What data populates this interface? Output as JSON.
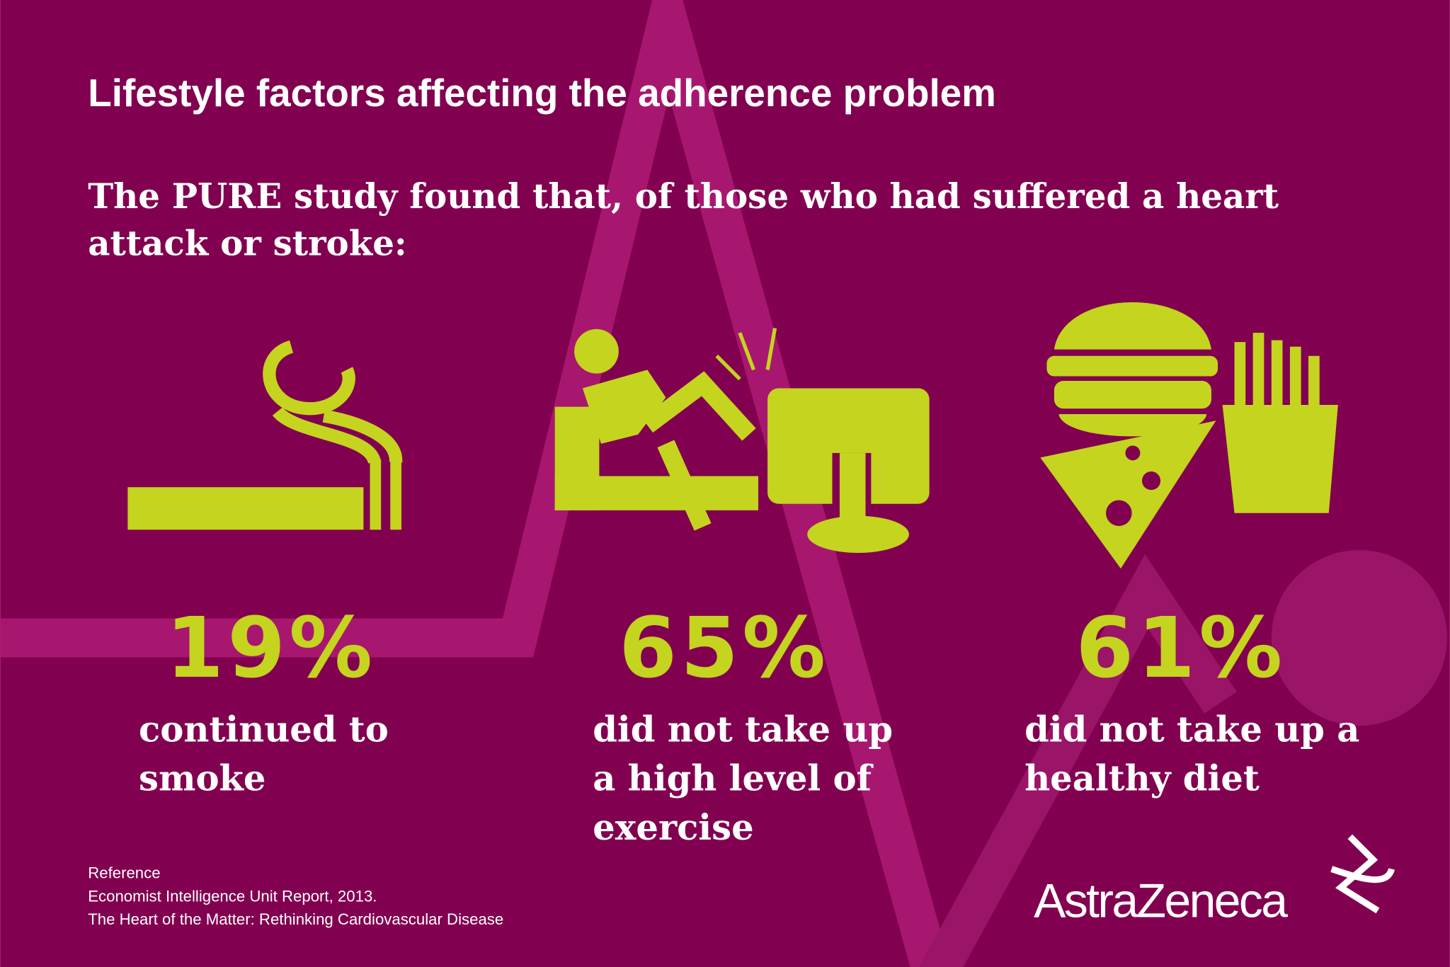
{
  "header": {
    "title": "Lifestyle factors affecting the adherence problem",
    "subtitle_lines": [
      "The PURE study found that, of those who had suffered a heart",
      "attack or stroke:"
    ]
  },
  "stats": [
    {
      "value": "19%",
      "lines": [
        "continued to",
        "smoke"
      ]
    },
    {
      "value": "65%",
      "lines": [
        "did not take up",
        "a high level of",
        "exercise"
      ]
    },
    {
      "value": "61%",
      "lines": [
        "did not take up a",
        "healthy diet"
      ]
    }
  ],
  "reference": {
    "heading": "Reference",
    "lines": [
      "Economist Intelligence Unit Report, 2013.",
      "The Heart of the Matter: Rethinking Cardiovascular Disease"
    ]
  },
  "logo": {
    "text": "AstraZeneca"
  }
}
